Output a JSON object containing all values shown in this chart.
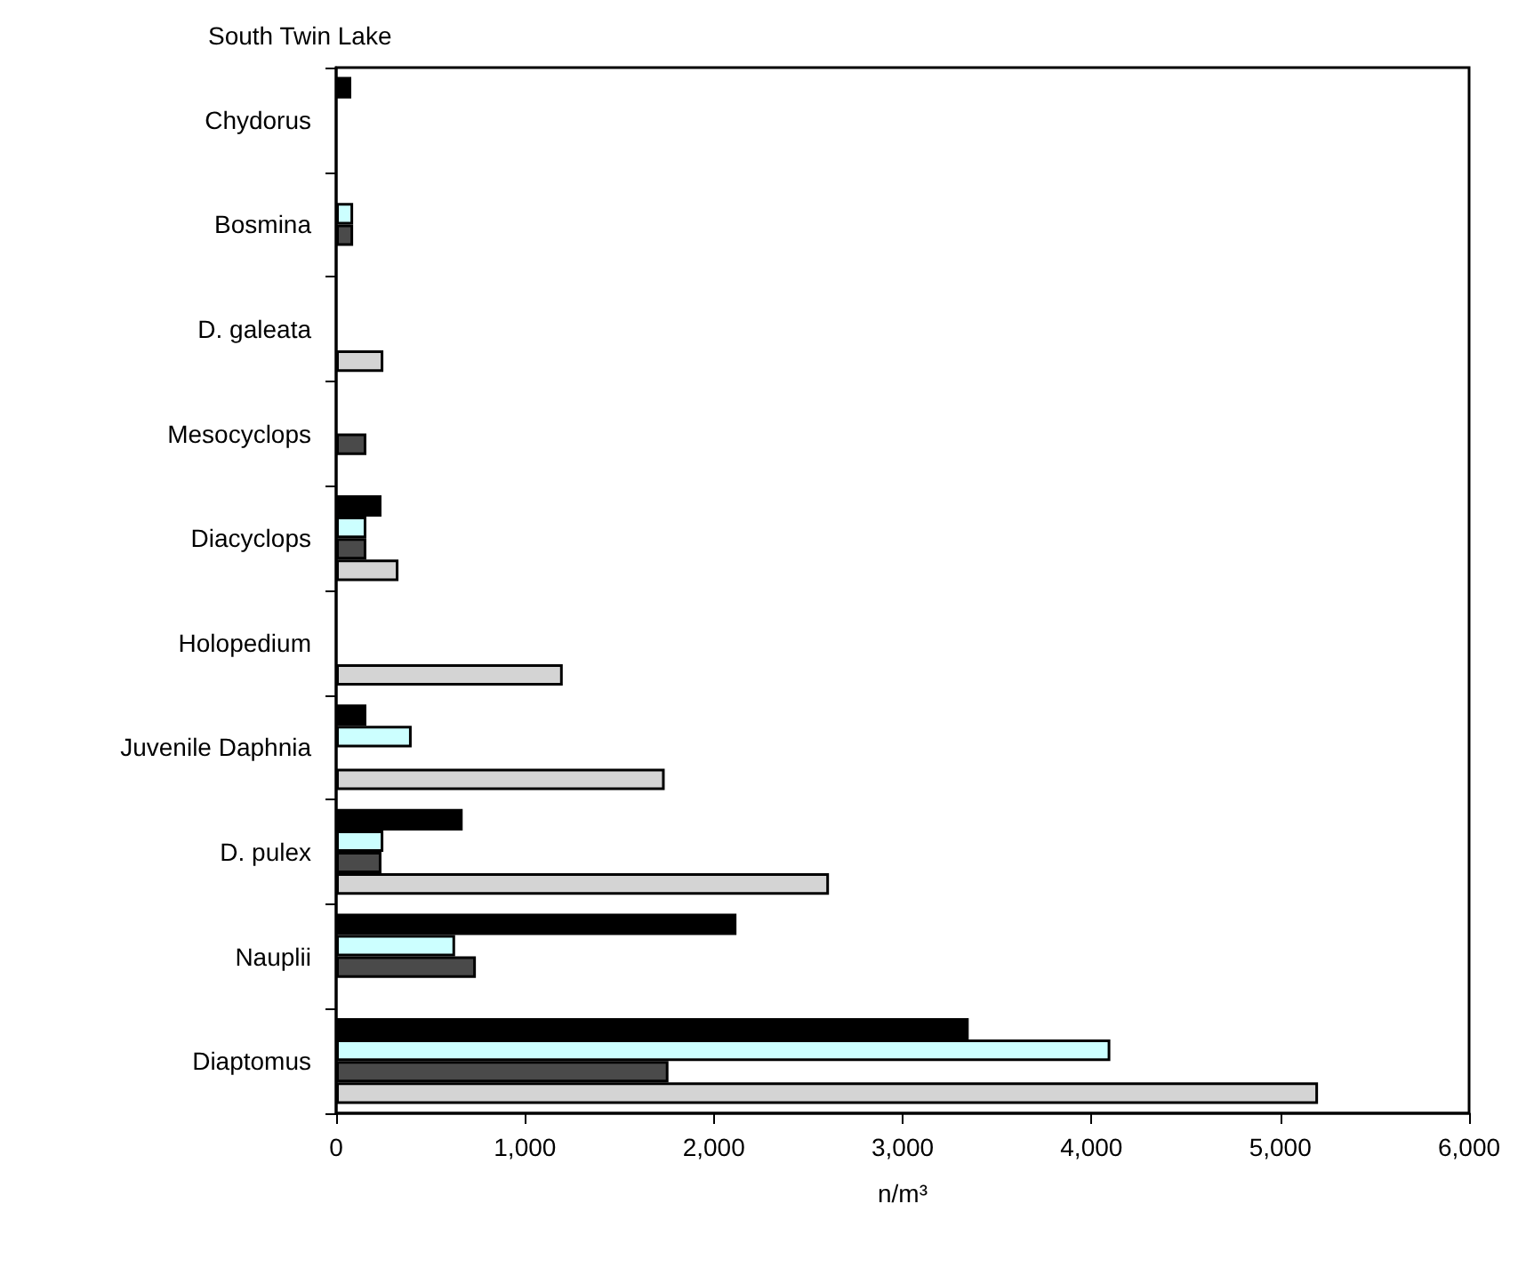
{
  "chart_data": {
    "type": "bar",
    "orientation": "horizontal",
    "title": "South Twin Lake",
    "xlabel": "n/m³",
    "categories": [
      "Chydorus",
      "Bosmina",
      "D. galeata",
      "Mesocyclops",
      "Diacyclops",
      "Holopedium",
      "Juvenile Daphnia",
      "D. pulex",
      "Nauplii",
      "Diaptomus"
    ],
    "series": [
      {
        "color": "#000000",
        "values": [
          80,
          null,
          null,
          null,
          240,
          null,
          160,
          670,
          2120,
          3350
        ]
      },
      {
        "color": "#ccffff",
        "values": [
          null,
          90,
          null,
          null,
          160,
          null,
          400,
          250,
          630,
          4100
        ]
      },
      {
        "color": "#4a4a4a",
        "values": [
          null,
          90,
          null,
          160,
          160,
          null,
          null,
          240,
          740,
          1760
        ]
      },
      {
        "color": "#d4d4d4",
        "values": [
          null,
          null,
          250,
          null,
          330,
          1200,
          1740,
          2610,
          null,
          5200
        ]
      }
    ],
    "xlim": [
      0,
      6000
    ],
    "xticks": [
      0,
      {
        "value": 1000,
        "label": "1,000"
      },
      {
        "value": 2000,
        "label": "2,000"
      },
      {
        "value": 3000,
        "label": "3,000"
      },
      {
        "value": 4000,
        "label": "4,000"
      },
      {
        "value": 5000,
        "label": "5,000"
      },
      {
        "value": 6000,
        "label": "6,000"
      }
    ],
    "grid": false
  }
}
